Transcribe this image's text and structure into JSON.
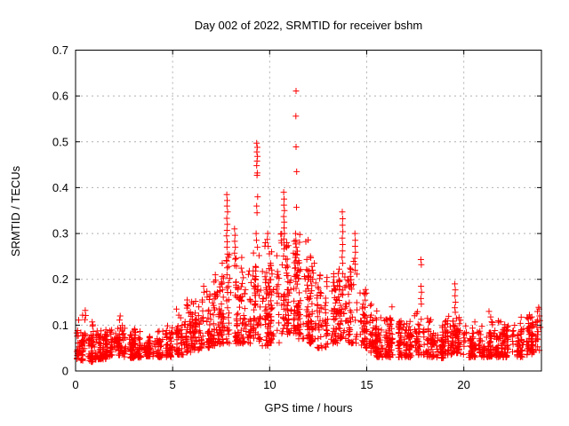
{
  "window": {
    "background": "#ffffff"
  },
  "chart_data": {
    "type": "scatter",
    "title": "Day 002 of 2022, SRMTID for receiver bshm",
    "xlabel": "GPS time / hours",
    "ylabel": "SRMTID / TECUs",
    "xlim": [
      0,
      24
    ],
    "ylim": [
      0,
      0.7
    ],
    "xticks": [
      0,
      5,
      10,
      15,
      20
    ],
    "xtick_labels": [
      "0",
      "5",
      "10",
      "15",
      "20"
    ],
    "yticks": [
      0,
      0.1,
      0.2,
      0.3,
      0.4,
      0.5,
      0.6,
      0.7
    ],
    "ytick_labels": [
      "0",
      "0.1",
      "0.2",
      "0.3",
      "0.4",
      "0.5",
      "0.6",
      "0.7"
    ],
    "grid": {
      "show": true,
      "color": "#b0b0b0",
      "dash": "2,4"
    },
    "frame_color": "#000000",
    "text_color": "#000000",
    "marker": {
      "shape": "plus",
      "color": "#ff0000",
      "size": 7,
      "stroke_width": 1
    },
    "legend": {
      "show": false
    },
    "seed": 20220102,
    "max_point": [
      11.36,
      0.611
    ],
    "peaks": [
      [
        9.33,
        0.497
      ],
      [
        9.36,
        0.488
      ],
      [
        9.34,
        0.478
      ],
      [
        9.37,
        0.468
      ],
      [
        9.35,
        0.458
      ],
      [
        9.33,
        0.448
      ],
      [
        9.36,
        0.432
      ],
      [
        9.35,
        0.427
      ],
      [
        9.38,
        0.38
      ],
      [
        9.33,
        0.36
      ],
      [
        9.35,
        0.345
      ],
      [
        9.3,
        0.3
      ],
      [
        9.32,
        0.285
      ],
      [
        9.37,
        0.27
      ],
      [
        11.36,
        0.611
      ],
      [
        11.35,
        0.556
      ],
      [
        11.36,
        0.489
      ],
      [
        11.39,
        0.435
      ],
      [
        11.38,
        0.357
      ],
      [
        11.33,
        0.3
      ],
      [
        11.35,
        0.285
      ],
      [
        11.37,
        0.27
      ],
      [
        11.34,
        0.255
      ],
      [
        11.36,
        0.24
      ],
      [
        11.33,
        0.225
      ],
      [
        11.38,
        0.21
      ],
      [
        11.35,
        0.195
      ],
      [
        11.36,
        0.18
      ],
      [
        10.72,
        0.39
      ],
      [
        10.74,
        0.375
      ],
      [
        10.73,
        0.362
      ],
      [
        10.76,
        0.35
      ],
      [
        10.72,
        0.337
      ],
      [
        10.75,
        0.325
      ],
      [
        10.74,
        0.312
      ],
      [
        10.76,
        0.3
      ],
      [
        10.73,
        0.288
      ],
      [
        10.75,
        0.275
      ],
      [
        7.79,
        0.385
      ],
      [
        7.81,
        0.372
      ],
      [
        7.8,
        0.36
      ],
      [
        7.83,
        0.347
      ],
      [
        7.79,
        0.333
      ],
      [
        7.82,
        0.32
      ],
      [
        7.8,
        0.307
      ],
      [
        7.78,
        0.295
      ],
      [
        7.81,
        0.282
      ],
      [
        7.8,
        0.27
      ],
      [
        7.83,
        0.255
      ],
      [
        7.79,
        0.24
      ],
      [
        7.81,
        0.225
      ],
      [
        7.8,
        0.21
      ],
      [
        8.19,
        0.31
      ],
      [
        8.21,
        0.296
      ],
      [
        8.2,
        0.283
      ],
      [
        8.23,
        0.27
      ],
      [
        8.19,
        0.257
      ],
      [
        8.22,
        0.244
      ],
      [
        8.2,
        0.23
      ],
      [
        13.74,
        0.347
      ],
      [
        13.76,
        0.332
      ],
      [
        13.75,
        0.318
      ],
      [
        13.77,
        0.304
      ],
      [
        13.74,
        0.29
      ],
      [
        13.76,
        0.276
      ],
      [
        13.75,
        0.262
      ],
      [
        13.73,
        0.248
      ],
      [
        13.76,
        0.235
      ],
      [
        14.39,
        0.3
      ],
      [
        14.41,
        0.285
      ],
      [
        14.4,
        0.272
      ],
      [
        14.42,
        0.259
      ],
      [
        14.39,
        0.246
      ],
      [
        14.41,
        0.233
      ],
      [
        14.4,
        0.22
      ],
      [
        17.79,
        0.243
      ],
      [
        17.81,
        0.232
      ],
      [
        17.8,
        0.185
      ],
      [
        17.82,
        0.172
      ],
      [
        17.79,
        0.158
      ],
      [
        17.81,
        0.146
      ],
      [
        19.54,
        0.19
      ],
      [
        19.56,
        0.177
      ],
      [
        19.55,
        0.164
      ],
      [
        19.57,
        0.15
      ],
      [
        19.54,
        0.138
      ],
      [
        19.56,
        0.128
      ],
      [
        0.5,
        0.132
      ],
      [
        0.52,
        0.121
      ],
      [
        0.48,
        0.112
      ],
      [
        2.3,
        0.12
      ],
      [
        5.2,
        0.135
      ],
      [
        5.75,
        0.155
      ],
      [
        5.78,
        0.142
      ],
      [
        6.6,
        0.185
      ],
      [
        6.62,
        0.172
      ],
      [
        7.2,
        0.21
      ],
      [
        7.22,
        0.198
      ],
      [
        9.9,
        0.3
      ],
      [
        9.88,
        0.287
      ],
      [
        9.92,
        0.272
      ],
      [
        10.1,
        0.26
      ],
      [
        12.1,
        0.25
      ],
      [
        12.3,
        0.235
      ],
      [
        16.3,
        0.14
      ],
      [
        21.3,
        0.13
      ],
      [
        23.9,
        0.12
      ],
      [
        23.92,
        0.11
      ],
      [
        23.94,
        0.095
      ]
    ],
    "bands": [
      [
        0.0,
        0.5,
        55,
        0.022,
        0.085,
        0.13
      ],
      [
        0.5,
        1.0,
        50,
        0.02,
        0.075,
        0.11
      ],
      [
        1.0,
        1.5,
        50,
        0.025,
        0.08,
        0.1
      ],
      [
        1.5,
        2.0,
        50,
        0.03,
        0.085,
        0.105
      ],
      [
        2.0,
        2.5,
        50,
        0.033,
        0.09,
        0.115
      ],
      [
        2.5,
        3.0,
        46,
        0.028,
        0.08,
        0.1
      ],
      [
        3.0,
        3.5,
        46,
        0.028,
        0.075,
        0.095
      ],
      [
        3.5,
        4.0,
        46,
        0.032,
        0.062,
        0.08
      ],
      [
        4.0,
        4.5,
        46,
        0.03,
        0.065,
        0.09
      ],
      [
        4.5,
        5.0,
        46,
        0.03,
        0.08,
        0.1
      ],
      [
        5.0,
        5.5,
        46,
        0.035,
        0.095,
        0.13
      ],
      [
        5.5,
        6.0,
        46,
        0.04,
        0.11,
        0.15
      ],
      [
        6.0,
        6.5,
        46,
        0.045,
        0.12,
        0.17
      ],
      [
        6.5,
        7.0,
        50,
        0.05,
        0.15,
        0.19
      ],
      [
        7.0,
        7.5,
        50,
        0.055,
        0.17,
        0.21
      ],
      [
        7.5,
        8.0,
        55,
        0.06,
        0.2,
        0.26
      ],
      [
        8.0,
        8.5,
        55,
        0.06,
        0.2,
        0.25
      ],
      [
        8.5,
        9.0,
        50,
        0.06,
        0.18,
        0.22
      ],
      [
        9.0,
        9.5,
        52,
        0.065,
        0.21,
        0.26
      ],
      [
        9.5,
        10.0,
        55,
        0.055,
        0.22,
        0.29
      ],
      [
        10.0,
        10.5,
        55,
        0.06,
        0.22,
        0.27
      ],
      [
        10.5,
        11.0,
        55,
        0.08,
        0.25,
        0.3
      ],
      [
        11.0,
        11.5,
        55,
        0.08,
        0.26,
        0.31
      ],
      [
        11.5,
        12.0,
        55,
        0.07,
        0.24,
        0.3
      ],
      [
        12.0,
        12.5,
        50,
        0.06,
        0.2,
        0.25
      ],
      [
        12.5,
        13.0,
        50,
        0.05,
        0.17,
        0.21
      ],
      [
        13.0,
        13.5,
        50,
        0.06,
        0.18,
        0.22
      ],
      [
        13.5,
        14.0,
        50,
        0.07,
        0.2,
        0.24
      ],
      [
        14.0,
        14.5,
        50,
        0.06,
        0.2,
        0.24
      ],
      [
        14.5,
        15.0,
        50,
        0.05,
        0.15,
        0.18
      ],
      [
        15.0,
        15.5,
        50,
        0.04,
        0.12,
        0.16
      ],
      [
        15.5,
        16.0,
        55,
        0.03,
        0.09,
        0.12
      ],
      [
        16.0,
        16.5,
        50,
        0.03,
        0.11,
        0.14
      ],
      [
        16.5,
        17.0,
        50,
        0.03,
        0.1,
        0.12
      ],
      [
        17.0,
        17.5,
        46,
        0.03,
        0.09,
        0.11
      ],
      [
        17.5,
        18.0,
        46,
        0.035,
        0.1,
        0.13
      ],
      [
        18.0,
        18.5,
        46,
        0.03,
        0.09,
        0.115
      ],
      [
        18.5,
        19.0,
        46,
        0.028,
        0.08,
        0.1
      ],
      [
        19.0,
        19.5,
        46,
        0.035,
        0.1,
        0.125
      ],
      [
        19.5,
        20.0,
        46,
        0.038,
        0.11,
        0.13
      ],
      [
        20.0,
        20.5,
        46,
        0.028,
        0.08,
        0.1
      ],
      [
        20.5,
        21.0,
        46,
        0.03,
        0.085,
        0.11
      ],
      [
        21.0,
        21.5,
        46,
        0.03,
        0.09,
        0.125
      ],
      [
        21.5,
        22.0,
        46,
        0.03,
        0.085,
        0.11
      ],
      [
        22.0,
        22.5,
        46,
        0.03,
        0.09,
        0.115
      ],
      [
        22.5,
        23.0,
        46,
        0.03,
        0.085,
        0.11
      ],
      [
        23.0,
        23.5,
        46,
        0.035,
        0.1,
        0.125
      ],
      [
        23.5,
        23.97,
        42,
        0.04,
        0.11,
        0.14
      ]
    ]
  }
}
